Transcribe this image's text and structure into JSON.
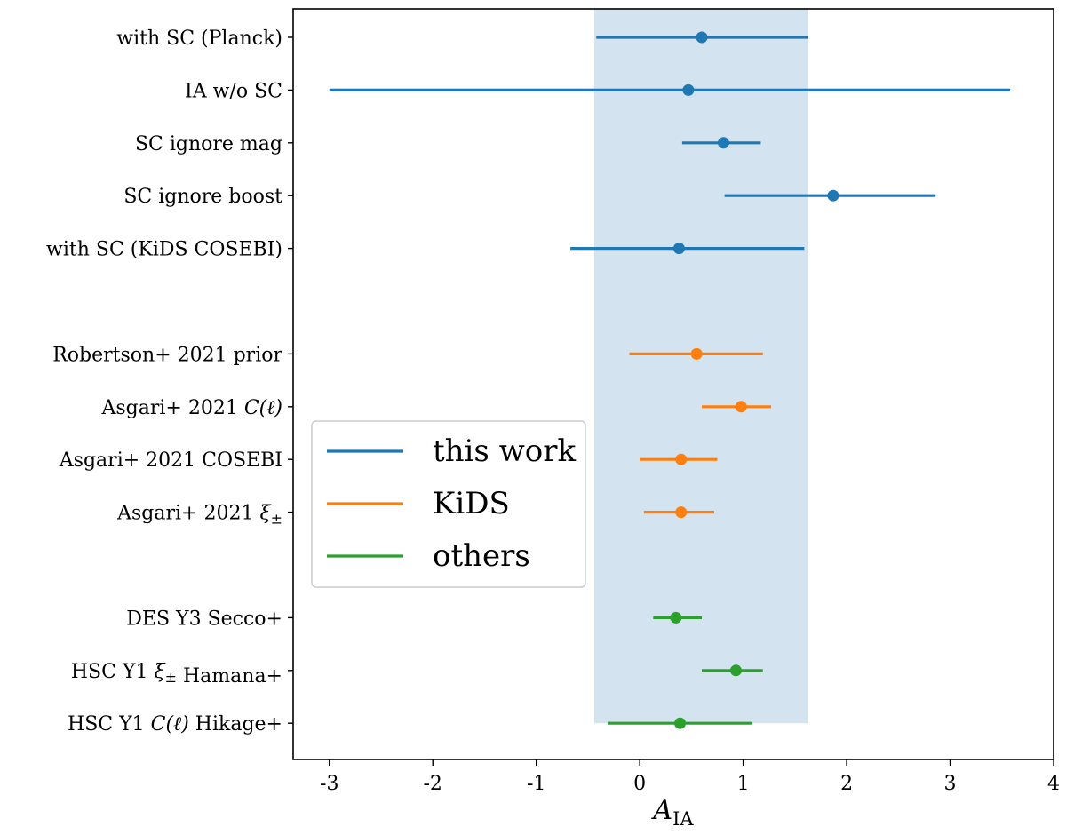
{
  "chart_data": {
    "type": "errorbar",
    "xlim": [
      -3.35,
      4.0
    ],
    "xticks": [
      -3,
      -2,
      -1,
      0,
      1,
      2,
      3,
      4
    ],
    "xtick_labels": [
      "-3",
      "-2",
      "-1",
      "0",
      "1",
      "2",
      "3",
      "4"
    ],
    "xlabel_main": "A",
    "xlabel_sub": "IA",
    "grid": false,
    "shaded_band": {
      "x_min": -0.44,
      "x_max": 1.63,
      "color": "#d4e3f0"
    },
    "legend": {
      "placement": "center-left",
      "entries": [
        {
          "label": "this work",
          "color": "#1f77b4"
        },
        {
          "label": "KiDS",
          "color": "#ff7f0e"
        },
        {
          "label": "others",
          "color": "#2ca02c"
        }
      ]
    },
    "points": [
      {
        "label": "with SC (Planck)",
        "group": "this work",
        "color": "#1f77b4",
        "value": 0.6,
        "lo": -0.42,
        "hi": 1.63
      },
      {
        "label": "IA w/o SC",
        "group": "this work",
        "color": "#1f77b4",
        "value": 0.47,
        "lo": -3.0,
        "hi": 3.58
      },
      {
        "label": "SC ignore mag",
        "group": "this work",
        "color": "#1f77b4",
        "value": 0.81,
        "lo": 0.41,
        "hi": 1.17
      },
      {
        "label": "SC ignore boost",
        "group": "this work",
        "color": "#1f77b4",
        "value": 1.87,
        "lo": 0.82,
        "hi": 2.86
      },
      {
        "label": "with SC (KiDS COSEBI)",
        "group": "this work",
        "color": "#1f77b4",
        "value": 0.38,
        "lo": -0.67,
        "hi": 1.59
      },
      {
        "label": "Robertson+ 2021 prior",
        "group": "KiDS",
        "color": "#ff7f0e",
        "value": 0.55,
        "lo": -0.1,
        "hi": 1.19
      },
      {
        "label": "Asgari+ 2021 C(ℓ)",
        "group": "KiDS",
        "color": "#ff7f0e",
        "value": 0.98,
        "lo": 0.6,
        "hi": 1.27
      },
      {
        "label": "Asgari+ 2021 COSEBI",
        "group": "KiDS",
        "color": "#ff7f0e",
        "value": 0.4,
        "lo": 0.0,
        "hi": 0.75
      },
      {
        "label": "Asgari+ 2021 ξ±",
        "group": "KiDS",
        "color": "#ff7f0e",
        "value": 0.4,
        "lo": 0.04,
        "hi": 0.72
      },
      {
        "label": "DES Y3 Secco+",
        "group": "others",
        "color": "#2ca02c",
        "value": 0.35,
        "lo": 0.13,
        "hi": 0.6
      },
      {
        "label": "HSC Y1 ξ± Hamana+",
        "group": "others",
        "color": "#2ca02c",
        "value": 0.93,
        "lo": 0.6,
        "hi": 1.19
      },
      {
        "label": "HSC Y1 C(ℓ) Hikage+",
        "group": "others",
        "color": "#2ca02c",
        "value": 0.39,
        "lo": -0.31,
        "hi": 1.09
      }
    ]
  }
}
